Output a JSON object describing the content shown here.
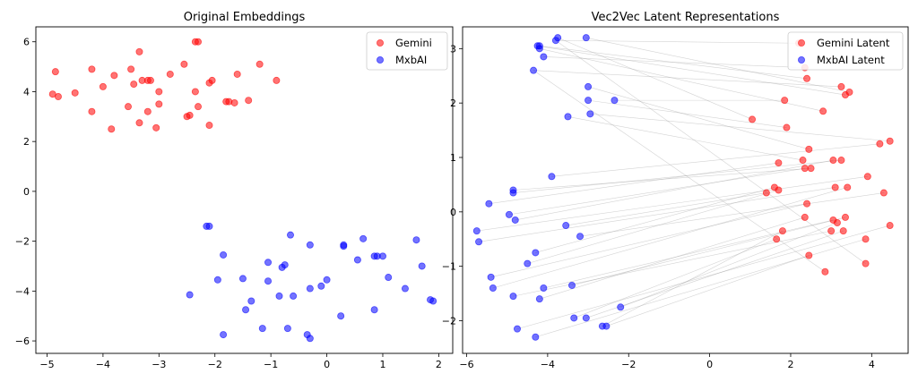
{
  "chart_data": [
    {
      "type": "scatter",
      "title": "Original Embeddings",
      "xlabel": "",
      "ylabel": "",
      "xlim": [
        -5.2,
        2.25
      ],
      "ylim": [
        -6.5,
        6.6
      ],
      "xticks": [
        -5,
        -4,
        -3,
        -2,
        -1,
        0,
        1,
        2
      ],
      "yticks": [
        -6,
        -4,
        -2,
        0,
        2,
        4,
        6
      ],
      "xtick_labels": [
        "−5",
        "−4",
        "−3",
        "−2",
        "−1",
        "0",
        "1",
        "2"
      ],
      "ytick_labels": [
        "−6",
        "−4",
        "−2",
        "0",
        "2",
        "4",
        "6"
      ],
      "legend_position": "top-right",
      "grid": false,
      "series": [
        {
          "name": "Gemini",
          "color": "#ff0000",
          "points": [
            [
              -4.85,
              4.8
            ],
            [
              -4.9,
              3.9
            ],
            [
              -4.8,
              3.8
            ],
            [
              -4.5,
              3.95
            ],
            [
              -4.2,
              4.9
            ],
            [
              -4.0,
              4.2
            ],
            [
              -3.8,
              4.65
            ],
            [
              -3.5,
              4.9
            ],
            [
              -3.45,
              4.3
            ],
            [
              -3.35,
              5.6
            ],
            [
              -3.3,
              4.45
            ],
            [
              -3.2,
              4.45
            ],
            [
              -3.15,
              4.45
            ],
            [
              -3.0,
              4.0
            ],
            [
              -2.8,
              4.7
            ],
            [
              -2.55,
              5.1
            ],
            [
              -2.5,
              3.0
            ],
            [
              -2.45,
              3.05
            ],
            [
              -2.35,
              6.0
            ],
            [
              -2.3,
              6.0
            ],
            [
              -2.35,
              4.0
            ],
            [
              -2.3,
              3.4
            ],
            [
              -2.1,
              4.35
            ],
            [
              -2.05,
              4.45
            ],
            [
              -1.8,
              3.6
            ],
            [
              -1.75,
              3.6
            ],
            [
              -1.65,
              3.55
            ],
            [
              -1.6,
              4.7
            ],
            [
              -1.4,
              3.65
            ],
            [
              -1.2,
              5.1
            ],
            [
              -0.9,
              4.45
            ],
            [
              -4.2,
              3.2
            ],
            [
              -3.85,
              2.5
            ],
            [
              -3.55,
              3.4
            ],
            [
              -3.35,
              2.75
            ],
            [
              -3.2,
              3.2
            ],
            [
              -3.05,
              2.55
            ],
            [
              -3.0,
              3.5
            ],
            [
              -2.1,
              2.65
            ]
          ]
        },
        {
          "name": "MxbAI",
          "color": "#0000ff",
          "points": [
            [
              -2.15,
              -1.4
            ],
            [
              -2.1,
              -1.4
            ],
            [
              -1.85,
              -2.55
            ],
            [
              -1.95,
              -3.55
            ],
            [
              -2.45,
              -4.15
            ],
            [
              -1.85,
              -5.75
            ],
            [
              -1.5,
              -3.5
            ],
            [
              -1.45,
              -4.75
            ],
            [
              -1.35,
              -4.4
            ],
            [
              -1.15,
              -5.5
            ],
            [
              -1.05,
              -2.85
            ],
            [
              -1.05,
              -3.6
            ],
            [
              -0.85,
              -4.2
            ],
            [
              -0.8,
              -3.05
            ],
            [
              -0.75,
              -2.95
            ],
            [
              -0.7,
              -5.5
            ],
            [
              -0.65,
              -1.75
            ],
            [
              -0.6,
              -4.2
            ],
            [
              -0.35,
              -5.75
            ],
            [
              -0.3,
              -5.9
            ],
            [
              -0.3,
              -3.9
            ],
            [
              -0.3,
              -2.15
            ],
            [
              -0.1,
              -3.8
            ],
            [
              0.0,
              -3.55
            ],
            [
              0.25,
              -5.0
            ],
            [
              0.3,
              -2.15
            ],
            [
              0.3,
              -2.2
            ],
            [
              0.55,
              -2.75
            ],
            [
              0.65,
              -1.9
            ],
            [
              0.85,
              -2.6
            ],
            [
              0.9,
              -2.6
            ],
            [
              0.85,
              -4.75
            ],
            [
              1.0,
              -2.6
            ],
            [
              1.1,
              -3.45
            ],
            [
              1.4,
              -3.9
            ],
            [
              1.6,
              -1.95
            ],
            [
              1.7,
              -3.0
            ],
            [
              1.85,
              -4.35
            ],
            [
              1.9,
              -4.4
            ]
          ]
        }
      ]
    },
    {
      "type": "scatter",
      "title": "Vec2Vec Latent Representations",
      "xlabel": "",
      "ylabel": "",
      "xlim": [
        -6.1,
        4.9
      ],
      "ylim": [
        -2.6,
        3.4
      ],
      "xticks": [
        -6,
        -4,
        -2,
        0,
        2,
        4
      ],
      "yticks": [
        -2,
        -1,
        0,
        1,
        2,
        3
      ],
      "xtick_labels": [
        "−6",
        "−4",
        "−2",
        "0",
        "2",
        "4"
      ],
      "ytick_labels": [
        "−2",
        "−1",
        "0",
        "1",
        "2",
        "3"
      ],
      "legend_position": "top-right",
      "grid": false,
      "links": "gray lines pair each Gemini Latent point with a MxbAI Latent point",
      "series": [
        {
          "name": "Gemini Latent",
          "color": "#ff0000",
          "points": [
            [
              2.2,
              3.1
            ],
            [
              2.35,
              2.65
            ],
            [
              2.4,
              2.45
            ],
            [
              3.25,
              2.3
            ],
            [
              3.35,
              2.15
            ],
            [
              3.45,
              2.2
            ],
            [
              1.85,
              2.05
            ],
            [
              2.8,
              1.85
            ],
            [
              1.05,
              1.7
            ],
            [
              1.9,
              1.55
            ],
            [
              2.45,
              1.15
            ],
            [
              4.2,
              1.25
            ],
            [
              4.45,
              1.3
            ],
            [
              1.7,
              0.9
            ],
            [
              2.3,
              0.95
            ],
            [
              2.35,
              0.8
            ],
            [
              2.5,
              0.8
            ],
            [
              3.05,
              0.95
            ],
            [
              3.25,
              0.95
            ],
            [
              3.9,
              0.65
            ],
            [
              1.4,
              0.35
            ],
            [
              1.6,
              0.45
            ],
            [
              1.7,
              0.4
            ],
            [
              3.1,
              0.45
            ],
            [
              3.4,
              0.45
            ],
            [
              4.3,
              0.35
            ],
            [
              2.4,
              0.15
            ],
            [
              2.35,
              -0.1
            ],
            [
              3.05,
              -0.15
            ],
            [
              3.15,
              -0.2
            ],
            [
              3.35,
              -0.1
            ],
            [
              3.0,
              -0.35
            ],
            [
              3.3,
              -0.35
            ],
            [
              4.45,
              -0.25
            ],
            [
              1.8,
              -0.35
            ],
            [
              1.65,
              -0.5
            ],
            [
              3.85,
              -0.5
            ],
            [
              2.45,
              -0.8
            ],
            [
              3.85,
              -0.95
            ],
            [
              2.85,
              -1.1
            ]
          ]
        },
        {
          "name": "MxbAI Latent",
          "color": "#0000ff",
          "points": [
            [
              -4.2,
              3.05
            ],
            [
              -4.25,
              3.05
            ],
            [
              -4.2,
              3.0
            ],
            [
              -3.8,
              3.15
            ],
            [
              -3.75,
              3.2
            ],
            [
              -3.05,
              3.2
            ],
            [
              -4.1,
              2.85
            ],
            [
              -4.35,
              2.6
            ],
            [
              -3.0,
              2.3
            ],
            [
              -3.0,
              2.05
            ],
            [
              -2.35,
              2.05
            ],
            [
              -2.95,
              1.8
            ],
            [
              -3.5,
              1.75
            ],
            [
              -3.9,
              0.65
            ],
            [
              -4.85,
              0.4
            ],
            [
              -4.85,
              0.35
            ],
            [
              -5.45,
              0.15
            ],
            [
              -4.95,
              -0.05
            ],
            [
              -4.8,
              -0.15
            ],
            [
              -3.55,
              -0.25
            ],
            [
              -5.75,
              -0.35
            ],
            [
              -5.7,
              -0.55
            ],
            [
              -4.3,
              -0.75
            ],
            [
              -3.2,
              -0.45
            ],
            [
              -4.5,
              -0.95
            ],
            [
              -5.4,
              -1.2
            ],
            [
              -5.35,
              -1.4
            ],
            [
              -4.1,
              -1.4
            ],
            [
              -3.4,
              -1.35
            ],
            [
              -4.2,
              -1.6
            ],
            [
              -4.85,
              -1.55
            ],
            [
              -2.2,
              -1.75
            ],
            [
              -3.35,
              -1.95
            ],
            [
              -3.05,
              -1.95
            ],
            [
              -2.55,
              -2.1
            ],
            [
              -2.65,
              -2.1
            ],
            [
              -4.75,
              -2.15
            ],
            [
              -4.3,
              -2.3
            ]
          ]
        }
      ],
      "pairs": [
        [
          0,
          3
        ],
        [
          1,
          6
        ],
        [
          2,
          0
        ],
        [
          3,
          7
        ],
        [
          4,
          1
        ],
        [
          5,
          5
        ],
        [
          6,
          10
        ],
        [
          7,
          2
        ],
        [
          8,
          4
        ],
        [
          9,
          9
        ],
        [
          10,
          8
        ],
        [
          11,
          13
        ],
        [
          12,
          11
        ],
        [
          13,
          16
        ],
        [
          14,
          12
        ],
        [
          15,
          17
        ],
        [
          16,
          14
        ],
        [
          17,
          18
        ],
        [
          18,
          15
        ],
        [
          19,
          20
        ],
        [
          20,
          19
        ],
        [
          21,
          22
        ],
        [
          22,
          24
        ],
        [
          23,
          21
        ],
        [
          24,
          26
        ],
        [
          25,
          23
        ],
        [
          26,
          25
        ],
        [
          27,
          29
        ],
        [
          28,
          27
        ],
        [
          29,
          31
        ],
        [
          30,
          28
        ],
        [
          31,
          30
        ],
        [
          32,
          33
        ],
        [
          33,
          36
        ],
        [
          34,
          35
        ],
        [
          35,
          32
        ],
        [
          36,
          37
        ],
        [
          37,
          34
        ],
        [
          38,
          3
        ],
        [
          39,
          7
        ]
      ]
    }
  ]
}
